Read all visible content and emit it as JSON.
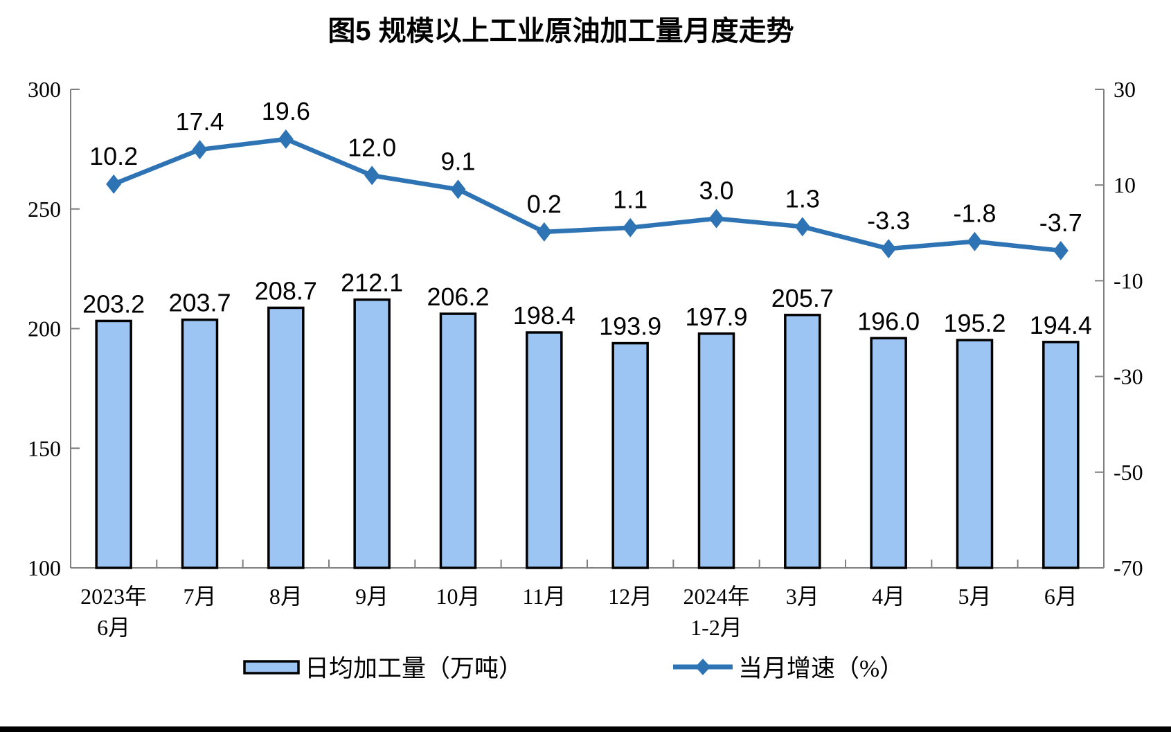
{
  "title": "图5 规模以上工业原油加工量月度走势",
  "colors": {
    "background": "#FFFFFF",
    "bar_fill": "#9CC5F3",
    "bar_border": "#000000",
    "line": "#2E74B5",
    "axis": "#7F7F7F",
    "text": "#000000",
    "bottom_bar": "#000000"
  },
  "chart_data": {
    "type": "bar+line",
    "title": "图5 规模以上工业原油加工量月度走势",
    "categories": [
      [
        "2023年",
        "6月"
      ],
      [
        "7月"
      ],
      [
        "8月"
      ],
      [
        "9月"
      ],
      [
        "10月"
      ],
      [
        "11月"
      ],
      [
        "12月"
      ],
      [
        "2024年",
        "1-2月"
      ],
      [
        "3月"
      ],
      [
        "4月"
      ],
      [
        "5月"
      ],
      [
        "6月"
      ]
    ],
    "series": [
      {
        "name": "日均加工量（万吨）",
        "type": "bar",
        "axis": "left",
        "values": [
          203.2,
          203.7,
          208.7,
          212.1,
          206.2,
          198.4,
          193.9,
          197.9,
          205.7,
          196.0,
          195.2,
          194.4
        ]
      },
      {
        "name": "当月增速（%）",
        "type": "line",
        "axis": "right",
        "values": [
          10.2,
          17.4,
          19.6,
          12.0,
          9.1,
          0.2,
          1.1,
          3.0,
          1.3,
          -3.3,
          -1.8,
          -3.7
        ]
      }
    ],
    "left_axis": {
      "min": 100,
      "max": 300,
      "ticks": [
        300,
        250,
        200,
        150,
        100
      ]
    },
    "right_axis": {
      "min": -70,
      "max": 30,
      "ticks": [
        30,
        10,
        -10,
        -30,
        -50,
        -70
      ]
    },
    "legend": [
      {
        "label": "日均加工量（万吨）",
        "swatch": "bar"
      },
      {
        "label": "当月增速（%）",
        "swatch": "line"
      }
    ],
    "grid": false,
    "legend_position": "bottom",
    "value_labels": true
  }
}
